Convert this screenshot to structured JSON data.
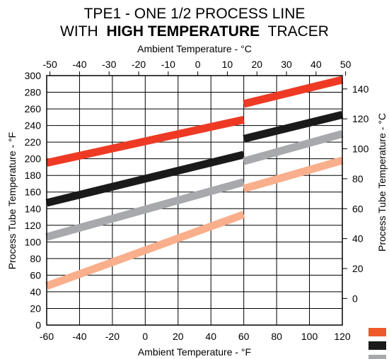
{
  "title": {
    "line1": "TPE1 - ONE 1/2  PROCESS LINE",
    "line2_prefix": "WITH",
    "line2_bold": "HIGH TEMPERATURE",
    "line2_suffix": "TRACER"
  },
  "axes": {
    "x_bottom_label": "Ambient Temperature - °F",
    "x_top_label": "Ambient Temperature - °C",
    "y_left_label": "Process Tube Temperature - °F",
    "y_right_label": "Process Tube Temperature - °C",
    "x_bottom_ticks": [
      "-60",
      "-40",
      "-20",
      "0",
      "20",
      "40",
      "60",
      "80",
      "100",
      "120"
    ],
    "x_top_ticks": [
      "-50",
      "-40",
      "-30",
      "-20",
      "-10",
      "0",
      "10",
      "20",
      "30",
      "40",
      "50"
    ],
    "y_left_ticks": [
      "0",
      "20",
      "40",
      "60",
      "80",
      "100",
      "120",
      "140",
      "160",
      "180",
      "200",
      "220",
      "240",
      "260",
      "280",
      "300"
    ],
    "y_right_ticks": [
      "0",
      "20",
      "40",
      "60",
      "80",
      "100",
      "120",
      "140"
    ]
  },
  "colors": {
    "red": "#ee3a24",
    "black": "#1a1a1a",
    "gray": "#a7a9ac",
    "salmon": "#f9ae8c",
    "legend_orange": "#ef5a2a"
  },
  "chart_data": {
    "type": "line",
    "xlabel": "Ambient Temperature - °F",
    "ylabel": "Process Tube Temperature - °F",
    "xlim": [
      -60,
      120
    ],
    "ylim": [
      0,
      300
    ],
    "grid": true,
    "series": [
      {
        "color": "red",
        "segments": [
          {
            "x": [
              -60,
              60
            ],
            "y": [
              195,
              247
            ]
          },
          {
            "x": [
              60,
              120
            ],
            "y": [
              266,
              295
            ]
          }
        ]
      },
      {
        "color": "black",
        "segments": [
          {
            "x": [
              -60,
              60
            ],
            "y": [
              147,
              205
            ]
          },
          {
            "x": [
              60,
              120
            ],
            "y": [
              224,
              253
            ]
          }
        ]
      },
      {
        "color": "gray",
        "segments": [
          {
            "x": [
              -60,
              60
            ],
            "y": [
              106,
              172
            ]
          },
          {
            "x": [
              60,
              120
            ],
            "y": [
              197,
              230
            ]
          }
        ]
      },
      {
        "color": "salmon",
        "segments": [
          {
            "x": [
              -60,
              60
            ],
            "y": [
              47,
              133
            ]
          },
          {
            "x": [
              60,
              120
            ],
            "y": [
              164,
              198
            ]
          }
        ]
      }
    ],
    "legend": {
      "placement": "bottom-right",
      "swatches": [
        "legend_orange",
        "black",
        "gray"
      ]
    }
  }
}
